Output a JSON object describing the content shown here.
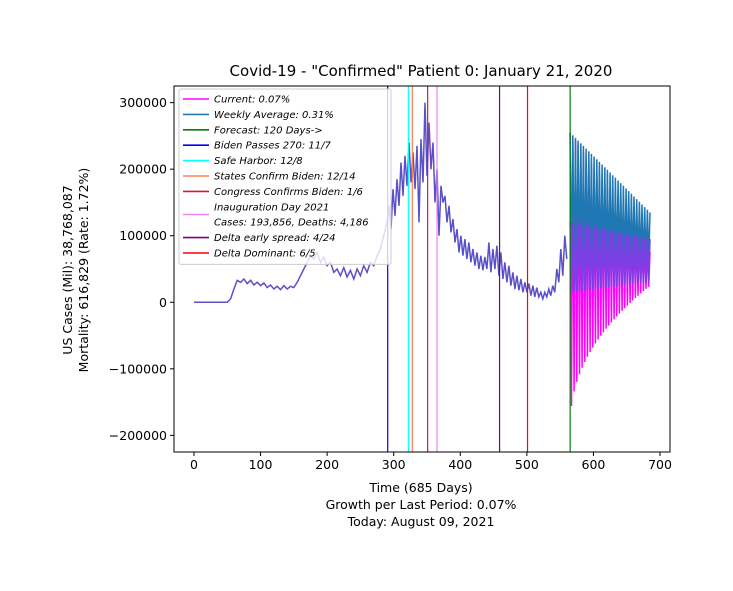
{
  "chart_data": {
    "type": "line",
    "title": "Covid-19 - \"Confirmed\" Patient 0: January 21, 2020",
    "ylabel_line1": "US Cases (Mil): 38,768,087",
    "ylabel_line2": "Mortality: 616,829 (Rate: 1.72%)",
    "xlabel_lines": [
      "Time (685 Days)",
      "Growth per Last Period: 0.07%",
      "Today: August 09, 2021"
    ],
    "xlim": [
      -30,
      715
    ],
    "ylim": [
      -225000,
      325000
    ],
    "xticks": [
      0,
      100,
      200,
      300,
      400,
      500,
      600,
      700
    ],
    "yticks": [
      -200000,
      -100000,
      0,
      100000,
      200000,
      300000
    ],
    "grid": false,
    "legend_position": "upper-left",
    "legend": [
      {
        "label": "Current: 0.07%",
        "color": "#ff00ff"
      },
      {
        "label": "Weekly Average: 0.31%",
        "color": "#1f77b4"
      },
      {
        "label": "Forecast: 120 Days->",
        "color": "#008000"
      },
      {
        "label": "Biden Passes 270: 11/7",
        "color": "#0000ff"
      },
      {
        "label": "Safe Harbor: 12/8",
        "color": "#00ffff"
      },
      {
        "label": "States Confirm Biden: 12/14",
        "color": "#ff7f50"
      },
      {
        "label": "Congress Confirms Biden: 1/6",
        "color": "#dc143c"
      },
      {
        "label": "Inauguration Day 2021\nCases: 193,856, Deaths: 4,186",
        "color": "#ee82ee"
      },
      {
        "label": "Delta early spread: 4/24",
        "color": "#800080"
      },
      {
        "label": "Delta Dominant: 6/5",
        "color": "#ff0000"
      }
    ],
    "vlines": [
      {
        "x": 291,
        "color": "#0000ff"
      },
      {
        "x": 322,
        "color": "#00ffff"
      },
      {
        "x": 328,
        "color": "#ff7f50"
      },
      {
        "x": 351,
        "color": "#dc143c"
      },
      {
        "x": 365,
        "color": "#ee82ee"
      },
      {
        "x": 459,
        "color": "#800080"
      },
      {
        "x": 501,
        "color": "#ff0000"
      },
      {
        "x": 565,
        "color": "#008000"
      }
    ],
    "series": [
      {
        "color": "#5a50c8",
        "points": [
          [
            0,
            0
          ],
          [
            50,
            0
          ],
          [
            55,
            5000
          ],
          [
            60,
            20000
          ],
          [
            65,
            33000
          ],
          [
            70,
            30000
          ],
          [
            75,
            35000
          ],
          [
            80,
            28000
          ],
          [
            85,
            33000
          ],
          [
            90,
            26000
          ],
          [
            95,
            30000
          ],
          [
            100,
            25000
          ],
          [
            105,
            29000
          ],
          [
            110,
            22000
          ],
          [
            115,
            26000
          ],
          [
            120,
            20000
          ],
          [
            125,
            24000
          ],
          [
            130,
            19000
          ],
          [
            135,
            25000
          ],
          [
            140,
            20000
          ],
          [
            145,
            24000
          ],
          [
            150,
            22000
          ],
          [
            155,
            30000
          ],
          [
            160,
            40000
          ],
          [
            165,
            50000
          ],
          [
            170,
            60000
          ],
          [
            175,
            70000
          ],
          [
            180,
            65000
          ],
          [
            185,
            75000
          ],
          [
            190,
            60000
          ],
          [
            195,
            68000
          ],
          [
            200,
            55000
          ],
          [
            205,
            60000
          ],
          [
            210,
            45000
          ],
          [
            215,
            50000
          ],
          [
            220,
            40000
          ],
          [
            225,
            52000
          ],
          [
            230,
            38000
          ],
          [
            235,
            48000
          ],
          [
            240,
            35000
          ],
          [
            245,
            50000
          ],
          [
            250,
            40000
          ],
          [
            255,
            55000
          ],
          [
            260,
            45000
          ],
          [
            265,
            60000
          ],
          [
            270,
            55000
          ],
          [
            275,
            70000
          ],
          [
            280,
            80000
          ],
          [
            285,
            100000
          ],
          [
            290,
            120000
          ],
          [
            293,
            145000
          ],
          [
            296,
            110000
          ],
          [
            299,
            170000
          ],
          [
            302,
            130000
          ],
          [
            305,
            185000
          ],
          [
            308,
            145000
          ],
          [
            311,
            210000
          ],
          [
            314,
            160000
          ],
          [
            317,
            220000
          ],
          [
            320,
            175000
          ],
          [
            323,
            240000
          ],
          [
            326,
            180000
          ],
          [
            329,
            225000
          ],
          [
            332,
            170000
          ],
          [
            335,
            235000
          ],
          [
            338,
            120000
          ],
          [
            341,
            245000
          ],
          [
            344,
            180000
          ],
          [
            347,
            300000
          ],
          [
            350,
            190000
          ],
          [
            353,
            270000
          ],
          [
            356,
            200000
          ],
          [
            359,
            240000
          ],
          [
            362,
            150000
          ],
          [
            365,
            200000
          ],
          [
            368,
            100000
          ],
          [
            371,
            175000
          ],
          [
            374,
            150000
          ],
          [
            377,
            160000
          ],
          [
            380,
            120000
          ],
          [
            383,
            145000
          ],
          [
            386,
            105000
          ],
          [
            389,
            125000
          ],
          [
            392,
            90000
          ],
          [
            395,
            110000
          ],
          [
            398,
            75000
          ],
          [
            401,
            100000
          ],
          [
            404,
            70000
          ],
          [
            407,
            95000
          ],
          [
            410,
            65000
          ],
          [
            413,
            90000
          ],
          [
            416,
            60000
          ],
          [
            419,
            80000
          ],
          [
            422,
            55000
          ],
          [
            425,
            75000
          ],
          [
            428,
            50000
          ],
          [
            431,
            70000
          ],
          [
            434,
            48000
          ],
          [
            437,
            68000
          ],
          [
            440,
            50000
          ],
          [
            443,
            90000
          ],
          [
            446,
            45000
          ],
          [
            449,
            80000
          ],
          [
            452,
            50000
          ],
          [
            455,
            85000
          ],
          [
            458,
            40000
          ],
          [
            461,
            75000
          ],
          [
            464,
            35000
          ],
          [
            467,
            60000
          ],
          [
            470,
            30000
          ],
          [
            473,
            55000
          ],
          [
            476,
            25000
          ],
          [
            479,
            45000
          ],
          [
            482,
            20000
          ],
          [
            485,
            40000
          ],
          [
            488,
            18000
          ],
          [
            491,
            35000
          ],
          [
            494,
            15000
          ],
          [
            497,
            30000
          ],
          [
            500,
            15000
          ],
          [
            503,
            28000
          ],
          [
            506,
            10000
          ],
          [
            509,
            25000
          ],
          [
            512,
            8000
          ],
          [
            515,
            22000
          ],
          [
            518,
            8000
          ],
          [
            521,
            15000
          ],
          [
            524,
            5000
          ],
          [
            527,
            15000
          ],
          [
            530,
            8000
          ],
          [
            533,
            20000
          ],
          [
            536,
            10000
          ],
          [
            539,
            25000
          ],
          [
            542,
            15000
          ],
          [
            545,
            50000
          ],
          [
            548,
            30000
          ],
          [
            551,
            80000
          ],
          [
            554,
            40000
          ],
          [
            557,
            100000
          ],
          [
            560,
            65000
          ]
        ]
      },
      {
        "color": "#ff00ff",
        "period": 4,
        "x_start": 565,
        "x_end": 685,
        "upper_start": 255000,
        "upper_end": 75000,
        "lower_start": -190000,
        "lower_end": 25000,
        "lower_curve": 0.45
      },
      {
        "color": "#1f77b4",
        "period": 4,
        "x_start": 565,
        "x_end": 685,
        "upper_start": 255000,
        "upper_end": 135000,
        "lower_start": 45000,
        "lower_end": 60000,
        "lower_curve": 1
      },
      {
        "color": "#7b3fe4",
        "period": 4,
        "x_start": 565,
        "x_end": 685,
        "upper_start": 120000,
        "upper_end": 95000,
        "lower_start": 15000,
        "lower_end": 30000,
        "lower_curve": 1
      }
    ]
  }
}
